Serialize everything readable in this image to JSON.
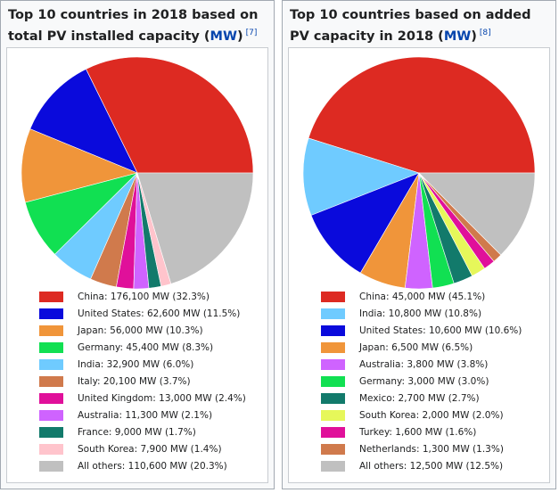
{
  "left": {
    "title_text": "Top 10 countries in 2018 based on total PV installed capacity (",
    "title_link": "MW",
    "title_tail": ")",
    "title_ref": "[7]"
  },
  "right": {
    "title_text": "Top 10 countries based on added PV capacity in 2018 (",
    "title_link": "MW",
    "title_tail": ")",
    "title_ref": "[8]"
  },
  "chart_data": [
    {
      "type": "pie",
      "slices": [
        {
          "label": "China: 176,100 MW (32.3%)",
          "value": 32.3,
          "color": "#dd2a22"
        },
        {
          "label": "United States: 62,600 MW (11.5%)",
          "value": 11.5,
          "color": "#0a0adc"
        },
        {
          "label": "Japan: 56,000 MW (10.3%)",
          "value": 10.3,
          "color": "#f0953a"
        },
        {
          "label": "Germany: 45,400 MW (8.3%)",
          "value": 8.3,
          "color": "#11e052"
        },
        {
          "label": "India: 32,900 MW (6.0%)",
          "value": 6.0,
          "color": "#6fcbff"
        },
        {
          "label": "Italy: 20,100 MW (3.7%)",
          "value": 3.7,
          "color": "#d07a4c"
        },
        {
          "label": "United Kingdom: 13,000 MW (2.4%)",
          "value": 2.4,
          "color": "#e0109a"
        },
        {
          "label": "Australia: 11,300 MW (2.1%)",
          "value": 2.1,
          "color": "#cf63ff"
        },
        {
          "label": "France: 9,000 MW (1.7%)",
          "value": 1.7,
          "color": "#127a6b"
        },
        {
          "label": "South Korea: 7,900 MW (1.4%)",
          "value": 1.4,
          "color": "#ffc4cc"
        },
        {
          "label": "All others: 110,600 MW (20.3%)",
          "value": 20.3,
          "color": "#c0c0c0"
        }
      ]
    },
    {
      "type": "pie",
      "slices": [
        {
          "label": "China: 45,000 MW (45.1%)",
          "value": 45.1,
          "color": "#dd2a22"
        },
        {
          "label": "India: 10,800 MW (10.8%)",
          "value": 10.8,
          "color": "#6fcbff"
        },
        {
          "label": "United States: 10,600 MW (10.6%)",
          "value": 10.6,
          "color": "#0a0adc"
        },
        {
          "label": "Japan: 6,500 MW (6.5%)",
          "value": 6.5,
          "color": "#f0953a"
        },
        {
          "label": "Australia: 3,800 MW (3.8%)",
          "value": 3.8,
          "color": "#cf63ff"
        },
        {
          "label": "Germany: 3,000 MW (3.0%)",
          "value": 3.0,
          "color": "#11e052"
        },
        {
          "label": "Mexico: 2,700 MW (2.7%)",
          "value": 2.7,
          "color": "#127a6b"
        },
        {
          "label": "South Korea: 2,000 MW (2.0%)",
          "value": 2.0,
          "color": "#e6f75a"
        },
        {
          "label": "Turkey: 1,600 MW (1.6%)",
          "value": 1.6,
          "color": "#e0109a"
        },
        {
          "label": "Netherlands: 1,300 MW (1.3%)",
          "value": 1.3,
          "color": "#d07a4c"
        },
        {
          "label": "All others: 12,500 MW (12.5%)",
          "value": 12.5,
          "color": "#c0c0c0"
        }
      ]
    }
  ]
}
